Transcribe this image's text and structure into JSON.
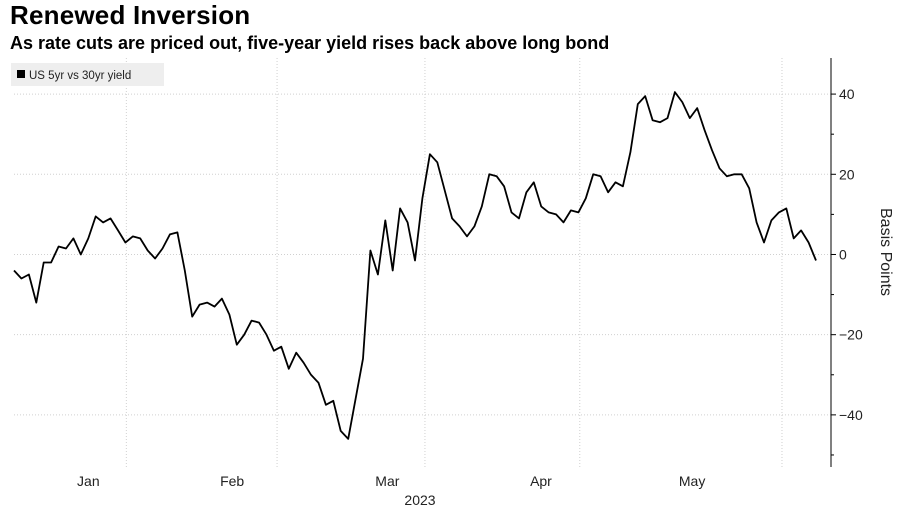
{
  "title": "Renewed Inversion",
  "subtitle": "As rate cuts are priced out, five-year yield rises back above long bond",
  "chart_data": {
    "type": "line",
    "title": "Renewed Inversion",
    "subtitle": "As rate cuts are priced out, five-year yield rises back above long bond",
    "ylabel": "Basis Points",
    "year_label": "2023",
    "ylim": [
      -53,
      49
    ],
    "yticks": [
      -40,
      -20,
      0,
      20,
      40
    ],
    "grid": true,
    "legend_position": "top-left",
    "month_labels": [
      "Jan",
      "Feb",
      "Mar",
      "Apr",
      "May"
    ],
    "series": [
      {
        "name": "US 5yr vs 30yr yield",
        "color": "#000000",
        "values": [
          -4,
          -6,
          -5,
          -12,
          -2,
          -2,
          2,
          1.5,
          4,
          0,
          4,
          9.5,
          8,
          9,
          6,
          3,
          4.5,
          4,
          1,
          -1,
          1.5,
          5,
          5.5,
          -4,
          -15.5,
          -12.5,
          -12,
          -13,
          -11,
          -15,
          -22.5,
          -20,
          -16.5,
          -17,
          -20,
          -24,
          -23,
          -28.5,
          -24.5,
          -27,
          -30,
          -32,
          -37.5,
          -36.5,
          -44,
          -46,
          -36,
          -26,
          1,
          -5,
          8.5,
          -4,
          11.5,
          8,
          -1.5,
          14,
          25,
          23,
          16,
          9,
          7,
          4.5,
          7,
          12,
          20,
          19.5,
          17,
          10.5,
          9,
          15.5,
          18,
          12,
          10.5,
          10,
          8,
          11,
          10.5,
          14,
          20,
          19.5,
          15.5,
          18,
          17,
          25.5,
          37.5,
          39.5,
          33.5,
          33,
          34,
          40.5,
          38,
          34,
          36.5,
          31,
          26,
          21.5,
          19.5,
          20,
          20,
          16.5,
          8,
          3,
          8.5,
          10.5,
          11.5,
          4,
          6,
          3,
          -1.5
        ]
      }
    ]
  }
}
